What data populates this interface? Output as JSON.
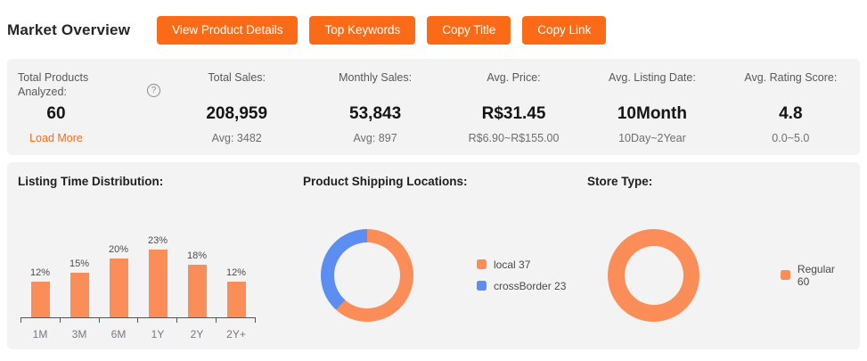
{
  "header": {
    "title": "Market Overview",
    "buttons": [
      "View Product Details",
      "Top Keywords",
      "Copy Title",
      "Copy Link"
    ]
  },
  "stats": {
    "columns": [
      {
        "label": "Total Products Analyzed:",
        "value": "60",
        "sub": "Load More"
      },
      {
        "label": "Total Sales:",
        "value": "208,959",
        "sub": "Avg: 3482"
      },
      {
        "label": "Monthly Sales:",
        "value": "53,843",
        "sub": "Avg: 897"
      },
      {
        "label": "Avg. Price:",
        "value": "R$31.45",
        "sub": "R$6.90~R$155.00"
      },
      {
        "label": "Avg. Listing Date:",
        "value": "10Month",
        "sub": "10Day~2Year"
      },
      {
        "label": "Avg. Rating Score:",
        "value": "4.8",
        "sub": "0.0~5.0"
      }
    ],
    "help_icon": "?"
  },
  "charts": {
    "bar_title": "Listing Time Distribution:",
    "shipping_title": "Product Shipping Locations:",
    "store_title": "Store Type:"
  },
  "chart_data": [
    {
      "type": "bar",
      "title": "Listing Time Distribution:",
      "categories": [
        "1M",
        "3M",
        "6M",
        "1Y",
        "2Y",
        "2Y+"
      ],
      "values": [
        12,
        15,
        20,
        23,
        18,
        12
      ],
      "unit": "%",
      "ylim": [
        0,
        25
      ],
      "grid": false,
      "color": "#fa8d58"
    },
    {
      "type": "pie",
      "title": "Product Shipping Locations:",
      "donut": true,
      "legend_position": "right",
      "segments": [
        {
          "label": "local",
          "value": 37,
          "color": "#fa8d58"
        },
        {
          "label": "crossBorder",
          "value": 23,
          "color": "#5c8df0"
        }
      ]
    },
    {
      "type": "pie",
      "title": "Store Type:",
      "donut": true,
      "legend_position": "right",
      "segments": [
        {
          "label": "Regular",
          "value": 60,
          "color": "#fa8d58"
        }
      ]
    }
  ],
  "colors": {
    "accent_orange": "#fa6a17",
    "chart_orange": "#fa8d58",
    "chart_blue": "#5c8df0",
    "card_bg": "#f3f3f4"
  }
}
